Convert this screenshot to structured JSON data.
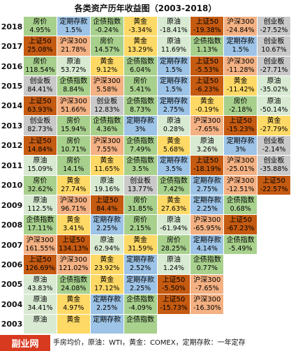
{
  "chart_data": {
    "type": "table",
    "title": "各类资产历年收益图（2003-2018）",
    "footnote": "手房均价，原油：WTI，黄金：COMEX，定期存款：一年定存",
    "logo": "副业网",
    "rows": [
      {
        "year": "2018",
        "cells": [
          {
            "name": "房价",
            "value": "4.95%",
            "color": "#a8d08d"
          },
          {
            "name": "定期存款",
            "value": "1.5%",
            "color": "#9dc3e6"
          },
          {
            "name": "企债指数",
            "value": "-0.24%",
            "color": "#a9d18e"
          },
          {
            "name": "黄金",
            "value": "-3.34%",
            "color": "#ffd966"
          },
          {
            "name": "原油",
            "value": "-18.41%",
            "color": "#d9ead3"
          },
          {
            "name": "上证50",
            "value": "-19.38%",
            "color": "#c55a11"
          },
          {
            "name": "沪深300",
            "value": "-24.84%",
            "color": "#f4b183"
          },
          {
            "name": "创业板",
            "value": "-27.52%",
            "color": "#c9c9c9"
          }
        ]
      },
      {
        "year": "2017",
        "cells": [
          {
            "name": "上证50",
            "value": "25.08%",
            "color": "#c55a11"
          },
          {
            "name": "沪深300",
            "value": "21.78%",
            "color": "#f4b183"
          },
          {
            "name": "房价",
            "value": "14.57%",
            "color": "#a8d08d"
          },
          {
            "name": "黄金",
            "value": "13.29%",
            "color": "#ffd966"
          },
          {
            "name": "原油",
            "value": "11.69%",
            "color": "#d9ead3"
          },
          {
            "name": "企债指数",
            "value": "1.13%",
            "color": "#a9d18e"
          },
          {
            "name": "定期存款",
            "value": "1.5%",
            "color": "#9dc3e6"
          },
          {
            "name": "创业板",
            "value": "10.67%",
            "color": "#c9c9c9"
          }
        ]
      },
      {
        "year": "2016",
        "cells": [
          {
            "name": "房价",
            "value": "118.54%",
            "color": "#a8d08d"
          },
          {
            "name": "原油",
            "value": "53.72%",
            "color": "#d9ead3"
          },
          {
            "name": "黄金",
            "value": "9.12%",
            "color": "#ffd966"
          },
          {
            "name": "企债指数",
            "value": "6.04%",
            "color": "#a9d18e"
          },
          {
            "name": "定期存款",
            "value": "1.5%",
            "color": "#9dc3e6"
          },
          {
            "name": "上证50",
            "value": "-5.53%",
            "color": "#c55a11"
          },
          {
            "name": "沪深300",
            "value": "-11.28%",
            "color": "#f4b183"
          },
          {
            "name": "创业板",
            "value": "-27.71%",
            "color": "#c9c9c9"
          }
        ]
      },
      {
        "year": "2015",
        "cells": [
          {
            "name": "创业板",
            "value": "84.41%",
            "color": "#c9c9c9"
          },
          {
            "name": "企债指数",
            "value": "8.84%",
            "color": "#a9d18e"
          },
          {
            "name": "沪深300",
            "value": "5.58%",
            "color": "#f4b183"
          },
          {
            "name": "房价",
            "value": "5.41%",
            "color": "#a8d08d"
          },
          {
            "name": "定期存款",
            "value": "1.5%",
            "color": "#9dc3e6"
          },
          {
            "name": "上证50",
            "value": "-6.23%",
            "color": "#c55a11"
          },
          {
            "name": "黄金",
            "value": "-11.42%",
            "color": "#ffd966"
          },
          {
            "name": "原油",
            "value": "-35.02%",
            "color": "#d9ead3"
          }
        ]
      },
      {
        "year": "2014",
        "cells": [
          {
            "name": "上证50",
            "value": "63.93%",
            "color": "#c55a11"
          },
          {
            "name": "沪深300",
            "value": "51.66%",
            "color": "#f4b183"
          },
          {
            "name": "创业板",
            "value": "12.83%",
            "color": "#c9c9c9"
          },
          {
            "name": "企债指数",
            "value": "8.73%",
            "color": "#a9d18e"
          },
          {
            "name": "定期存款",
            "value": "2.75%",
            "color": "#9dc3e6"
          },
          {
            "name": "黄金",
            "value": "-0.19%",
            "color": "#ffd966"
          },
          {
            "name": "房价",
            "value": "-2.18%",
            "color": "#a8d08d"
          },
          {
            "name": "原油",
            "value": "-50.14%",
            "color": "#d9ead3"
          }
        ]
      },
      {
        "year": "2013",
        "cells": [
          {
            "name": "创业板",
            "value": "82.73%",
            "color": "#c9c9c9"
          },
          {
            "name": "房价",
            "value": "15.94%",
            "color": "#a8d08d"
          },
          {
            "name": "企债指数",
            "value": "4.36%",
            "color": "#a9d18e"
          },
          {
            "name": "定期存款",
            "value": "3%",
            "color": "#9dc3e6"
          },
          {
            "name": "原油",
            "value": "0.28%",
            "color": "#d9ead3"
          },
          {
            "name": "沪深300",
            "value": "-7.65%",
            "color": "#f4b183"
          },
          {
            "name": "上证50",
            "value": "-15.23%",
            "color": "#c55a11"
          },
          {
            "name": "黄金",
            "value": "-27.79%",
            "color": "#ffd966"
          }
        ]
      },
      {
        "year": "2012",
        "cells": [
          {
            "name": "上证50",
            "value": "14.84%",
            "color": "#c55a11"
          },
          {
            "name": "房价",
            "value": "10.71%",
            "color": "#a8d08d"
          },
          {
            "name": "沪深300",
            "value": "7.55%",
            "color": "#f4b183"
          },
          {
            "name": "企债指数",
            "value": "7.49%",
            "color": "#a9d18e"
          },
          {
            "name": "黄金",
            "value": "5.68%",
            "color": "#ffd966"
          },
          {
            "name": "原油",
            "value": "3.26%",
            "color": "#d9ead3"
          },
          {
            "name": "定期存款",
            "value": "3%",
            "color": "#9dc3e6"
          },
          {
            "name": "创业板",
            "value": "-2.14%",
            "color": "#c9c9c9"
          }
        ]
      },
      {
        "year": "2011",
        "cells": [
          {
            "name": "原油",
            "value": "15.09%",
            "color": "#d9ead3"
          },
          {
            "name": "房价",
            "value": "14.1%",
            "color": "#a8d08d"
          },
          {
            "name": "黄金",
            "value": "11.65%",
            "color": "#ffd966"
          },
          {
            "name": "企债指数",
            "value": "3.5%",
            "color": "#a9d18e"
          },
          {
            "name": "定期存款",
            "value": "3.5%",
            "color": "#9dc3e6"
          },
          {
            "name": "上证50",
            "value": "-18.19%",
            "color": "#c55a11"
          },
          {
            "name": "沪深300",
            "value": "-25.01%",
            "color": "#f4b183"
          },
          {
            "name": "创业板",
            "value": "-35.88%",
            "color": "#c9c9c9"
          }
        ]
      },
      {
        "year": "2010",
        "cells": [
          {
            "name": "房价",
            "value": "32.62%",
            "color": "#a8d08d"
          },
          {
            "name": "黄金",
            "value": "27.74%",
            "color": "#ffd966"
          },
          {
            "name": "原油",
            "value": "19.16%",
            "color": "#d9ead3"
          },
          {
            "name": "创业板",
            "value": "13.77%",
            "color": "#c9c9c9"
          },
          {
            "name": "企债指数",
            "value": "7.42%",
            "color": "#a9d18e"
          },
          {
            "name": "定期存款",
            "value": "2.75%",
            "color": "#9dc3e6"
          },
          {
            "name": "沪深300",
            "value": "-12.51%",
            "color": "#f4b183"
          },
          {
            "name": "上证50",
            "value": "-22.57%",
            "color": "#c55a11"
          }
        ]
      },
      {
        "year": "2009",
        "cells": [
          {
            "name": "原油",
            "value": "112.5%",
            "color": "#d9ead3"
          },
          {
            "name": "沪深300",
            "value": "96.71%",
            "color": "#f4b183"
          },
          {
            "name": "上证50",
            "value": "84.4%",
            "color": "#c55a11"
          },
          {
            "name": "房价",
            "value": "31.85%",
            "color": "#a8d08d"
          },
          {
            "name": "黄金",
            "value": "27.63%",
            "color": "#ffd966"
          },
          {
            "name": "定期存款",
            "value": "2.25%",
            "color": "#9dc3e6"
          },
          {
            "name": "企债指数",
            "value": "0.68%",
            "color": "#a9d18e"
          }
        ]
      },
      {
        "year": "2008",
        "cells": [
          {
            "name": "企债指数",
            "value": "17.11%",
            "color": "#a9d18e"
          },
          {
            "name": "黄金",
            "value": "3.41%",
            "color": "#ffd966"
          },
          {
            "name": "定期存款",
            "value": "2.25%",
            "color": "#9dc3e6"
          },
          {
            "name": "房价",
            "value": "2.15%",
            "color": "#a8d08d"
          },
          {
            "name": "原油",
            "value": "-61.94%",
            "color": "#d9ead3"
          },
          {
            "name": "沪深300",
            "value": "-65.95%",
            "color": "#f4b183"
          },
          {
            "name": "上证50",
            "value": "-67.23%",
            "color": "#c55a11"
          }
        ]
      },
      {
        "year": "2007",
        "cells": [
          {
            "name": "沪深300",
            "value": "161.55%",
            "color": "#f4b183"
          },
          {
            "name": "上证50",
            "value": "134.13%",
            "color": "#c55a11"
          },
          {
            "name": "原油",
            "value": "62.94%",
            "color": "#d9ead3"
          },
          {
            "name": "黄金",
            "value": "31.59%",
            "color": "#ffd966"
          },
          {
            "name": "房价",
            "value": "28.25%",
            "color": "#a8d08d"
          },
          {
            "name": "定期存款",
            "value": "4.14%",
            "color": "#9dc3e6"
          },
          {
            "name": "企债指数",
            "value": "-5.49%",
            "color": "#a9d18e"
          }
        ]
      },
      {
        "year": "2006",
        "cells": [
          {
            "name": "上证50",
            "value": "126.69%",
            "color": "#c55a11"
          },
          {
            "name": "沪深300",
            "value": "121.02%",
            "color": "#f4b183"
          },
          {
            "name": "黄金",
            "value": "23.92%",
            "color": "#ffd966"
          },
          {
            "name": "定期存款",
            "value": "2.52%",
            "color": "#9dc3e6"
          },
          {
            "name": "原油",
            "value": "1.24%",
            "color": "#d9ead3"
          },
          {
            "name": "企债指数",
            "value": "0.77%",
            "color": "#a9d18e"
          }
        ]
      },
      {
        "year": "2005",
        "cells": [
          {
            "name": "原油",
            "value": "43.83%",
            "color": "#d9ead3"
          },
          {
            "name": "企债指数",
            "value": "24.08%",
            "color": "#a9d18e"
          },
          {
            "name": "黄金",
            "value": "17.12%",
            "color": "#ffd966"
          },
          {
            "name": "定期存款",
            "value": "2.25%",
            "color": "#9dc3e6"
          },
          {
            "name": "上证50",
            "value": "-5.50%",
            "color": "#c55a11"
          },
          {
            "name": "沪深300",
            "value": "-7.65%",
            "color": "#f4b183"
          }
        ]
      },
      {
        "year": "2004",
        "cells": [
          {
            "name": "原油",
            "value": "34.41%",
            "color": "#d9ead3"
          },
          {
            "name": "黄金",
            "value": "4.97%",
            "color": "#ffd966"
          },
          {
            "name": "定期存款",
            "value": "2.25%",
            "color": "#9dc3e6"
          },
          {
            "name": "企债指数",
            "value": "-4.09%",
            "color": "#a9d18e"
          },
          {
            "name": "上证50",
            "value": "-15.73%",
            "color": "#c55a11"
          },
          {
            "name": "沪深300",
            "value": "-16.30%",
            "color": "#f4b183"
          }
        ]
      },
      {
        "year": "2003",
        "cells": [
          {
            "name": "原油",
            "value": "",
            "color": "#d9ead3"
          },
          {
            "name": "黄金",
            "value": "",
            "color": "#ffd966"
          },
          {
            "name": "定期存款",
            "value": "",
            "color": "#9dc3e6"
          },
          {
            "name": "企债指数",
            "value": "",
            "color": "#a9d18e"
          }
        ]
      }
    ]
  }
}
